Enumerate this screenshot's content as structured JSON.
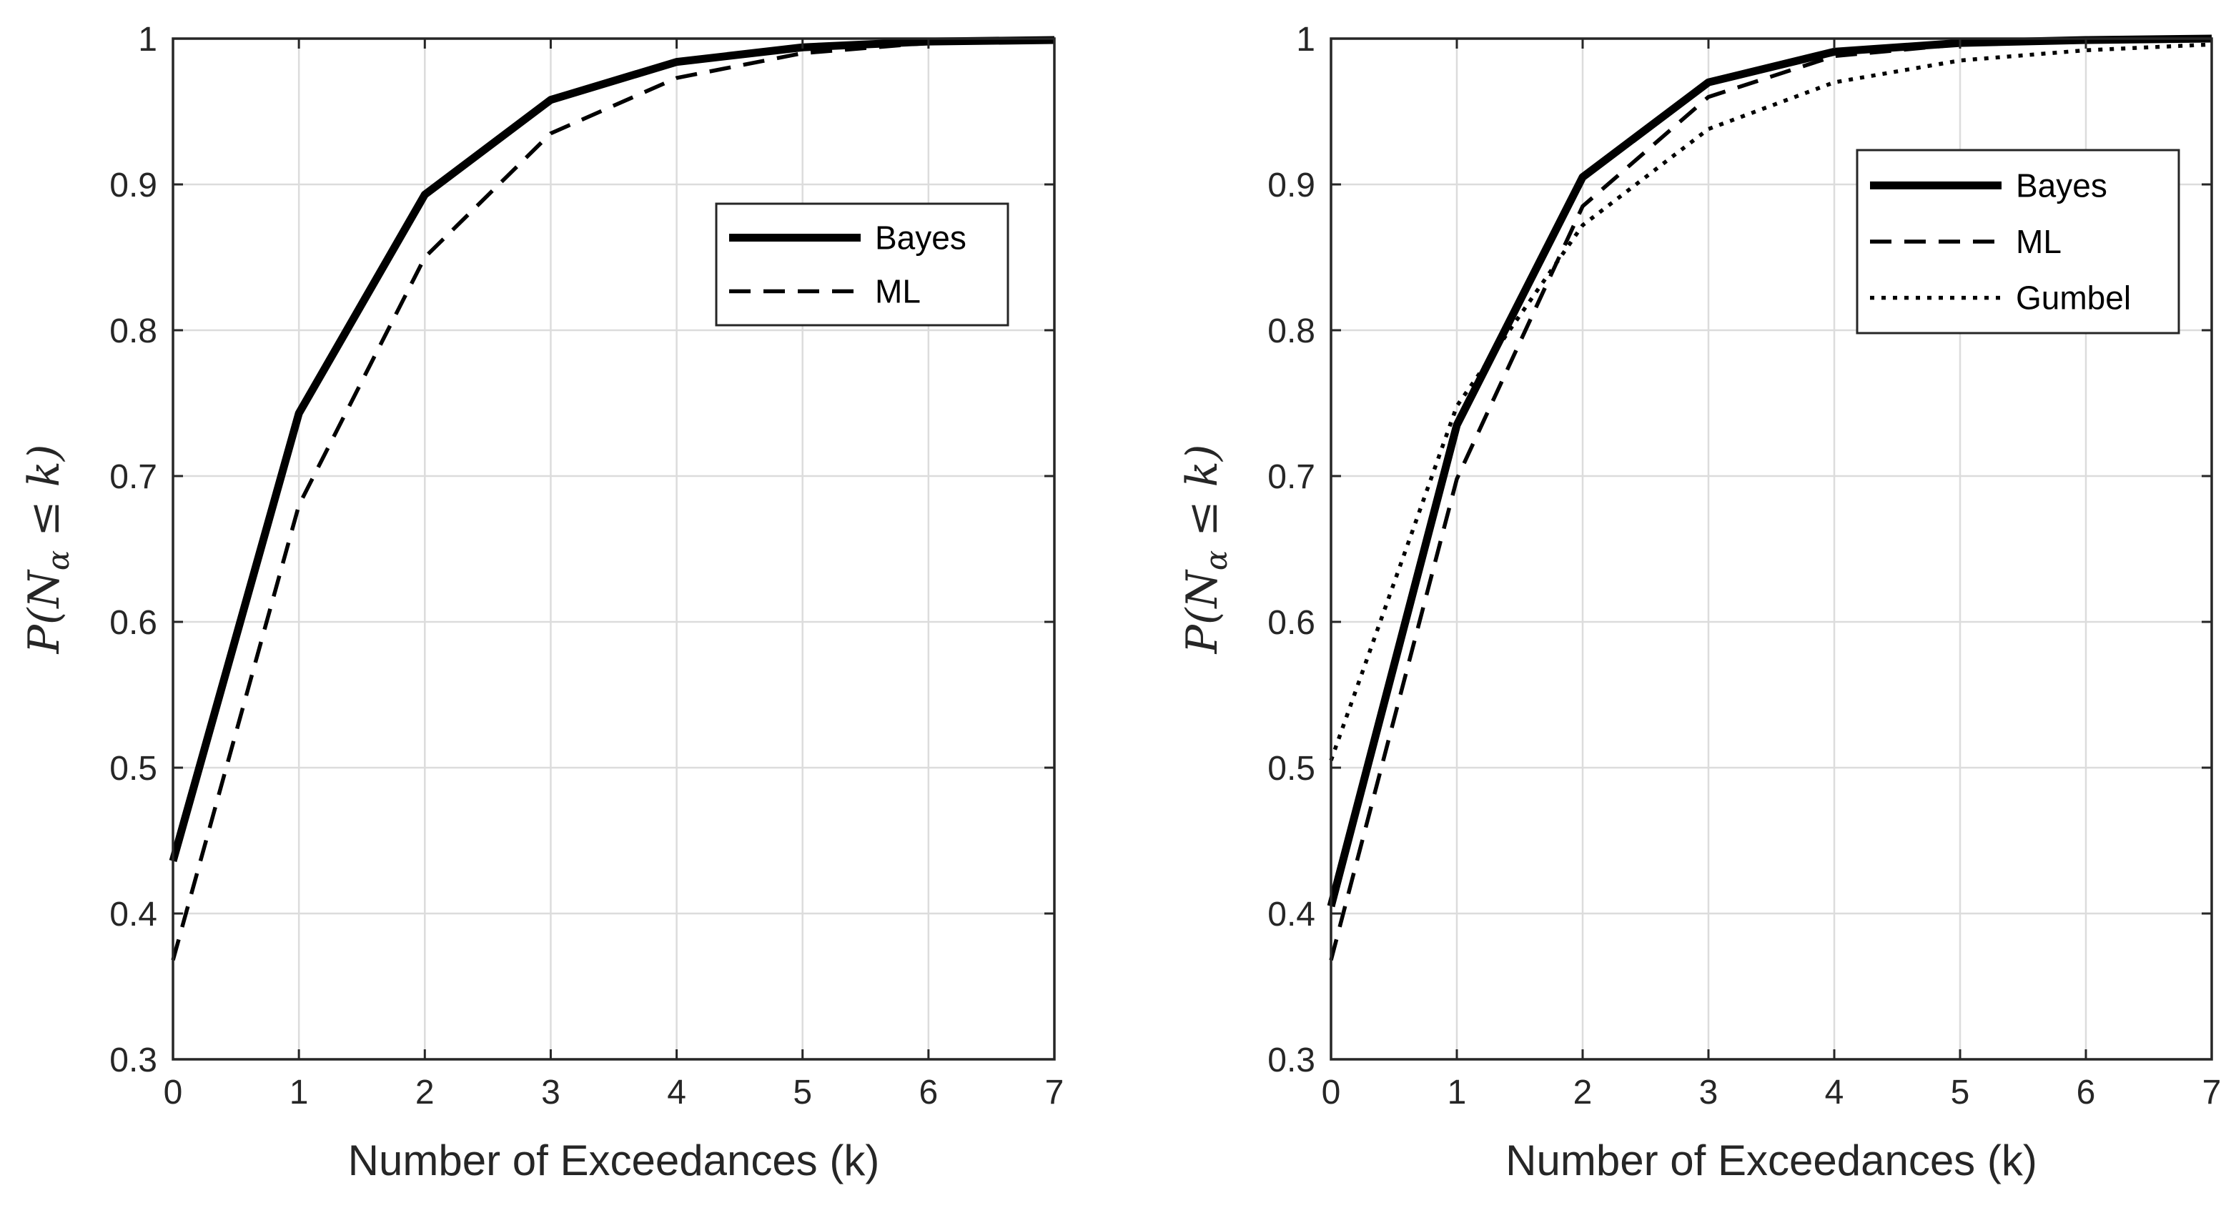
{
  "chart_data": [
    {
      "type": "line",
      "title": "",
      "xlabel": "Number of Exceedances (k)",
      "ylabel": "P(N_α ≤ k)",
      "ylabel_parts": {
        "p": "P(N",
        "sub": "α",
        "rest": " ≤ k)"
      },
      "xlim": [
        0,
        7
      ],
      "ylim": [
        0.3,
        1
      ],
      "xticks": [
        "0",
        "1",
        "2",
        "3",
        "4",
        "5",
        "6",
        "7"
      ],
      "yticks": [
        "0.3",
        "0.4",
        "0.5",
        "0.6",
        "0.7",
        "0.8",
        "0.9",
        "1"
      ],
      "grid": true,
      "legend_position": "upper-right",
      "x": [
        0,
        1,
        2,
        3,
        4,
        5,
        6,
        7
      ],
      "series": [
        {
          "name": "Bayes",
          "style": "solid",
          "values": [
            0.436,
            0.743,
            0.893,
            0.958,
            0.984,
            0.994,
            0.998,
            0.999
          ]
        },
        {
          "name": "ML",
          "style": "dashed",
          "values": [
            0.368,
            0.68,
            0.85,
            0.935,
            0.973,
            0.99,
            0.997,
            0.999
          ]
        }
      ]
    },
    {
      "type": "line",
      "title": "",
      "xlabel": "Number of Exceedances (k)",
      "ylabel": "P(N_α ≤ k)",
      "ylabel_parts": {
        "p": "P(N",
        "sub": "α",
        "rest": " ≤ k)"
      },
      "xlim": [
        0,
        7
      ],
      "ylim": [
        0.3,
        1
      ],
      "xticks": [
        "0",
        "1",
        "2",
        "3",
        "4",
        "5",
        "6",
        "7"
      ],
      "yticks": [
        "0.3",
        "0.4",
        "0.5",
        "0.6",
        "0.7",
        "0.8",
        "0.9",
        "1"
      ],
      "grid": true,
      "legend_position": "upper-right",
      "x": [
        0,
        1,
        2,
        3,
        4,
        5,
        6,
        7
      ],
      "series": [
        {
          "name": "Bayes",
          "style": "solid",
          "values": [
            0.405,
            0.735,
            0.905,
            0.97,
            0.991,
            0.997,
            0.999,
            1.0
          ]
        },
        {
          "name": "ML",
          "style": "dashed",
          "values": [
            0.368,
            0.698,
            0.885,
            0.96,
            0.988,
            0.996,
            0.999,
            1.0
          ]
        },
        {
          "name": "Gumbel",
          "style": "dotted",
          "values": [
            0.505,
            0.748,
            0.872,
            0.938,
            0.97,
            0.985,
            0.992,
            0.996
          ]
        }
      ]
    }
  ]
}
